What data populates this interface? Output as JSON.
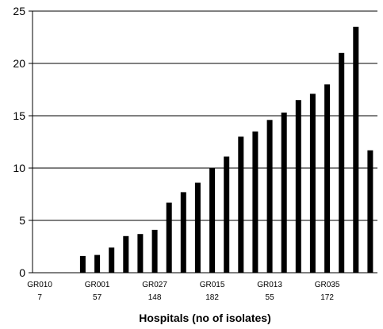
{
  "chart_data": {
    "type": "bar",
    "title": "",
    "xlabel": "Hospitals (no of isolates)",
    "ylabel": "",
    "ylim": [
      0,
      25
    ],
    "yticks": [
      0,
      5,
      10,
      15,
      20,
      25
    ],
    "grid": true,
    "legend": "none",
    "bar_color": "#000000",
    "values": [
      0,
      0,
      0,
      1.6,
      1.7,
      2.4,
      3.5,
      3.7,
      4.1,
      6.7,
      7.7,
      8.6,
      10.0,
      11.1,
      13.0,
      13.5,
      14.6,
      15.3,
      16.5,
      17.1,
      18.0,
      21.0,
      23.5,
      11.7
    ],
    "category_labels": [
      {
        "index": 0,
        "name": "GR010",
        "isolates": "7"
      },
      {
        "index": 4,
        "name": "GR001",
        "isolates": "57"
      },
      {
        "index": 8,
        "name": "GR027",
        "isolates": "148"
      },
      {
        "index": 12,
        "name": "GR015",
        "isolates": "182"
      },
      {
        "index": 16,
        "name": "GR013",
        "isolates": "55"
      },
      {
        "index": 20,
        "name": "GR035",
        "isolates": "172"
      }
    ]
  }
}
